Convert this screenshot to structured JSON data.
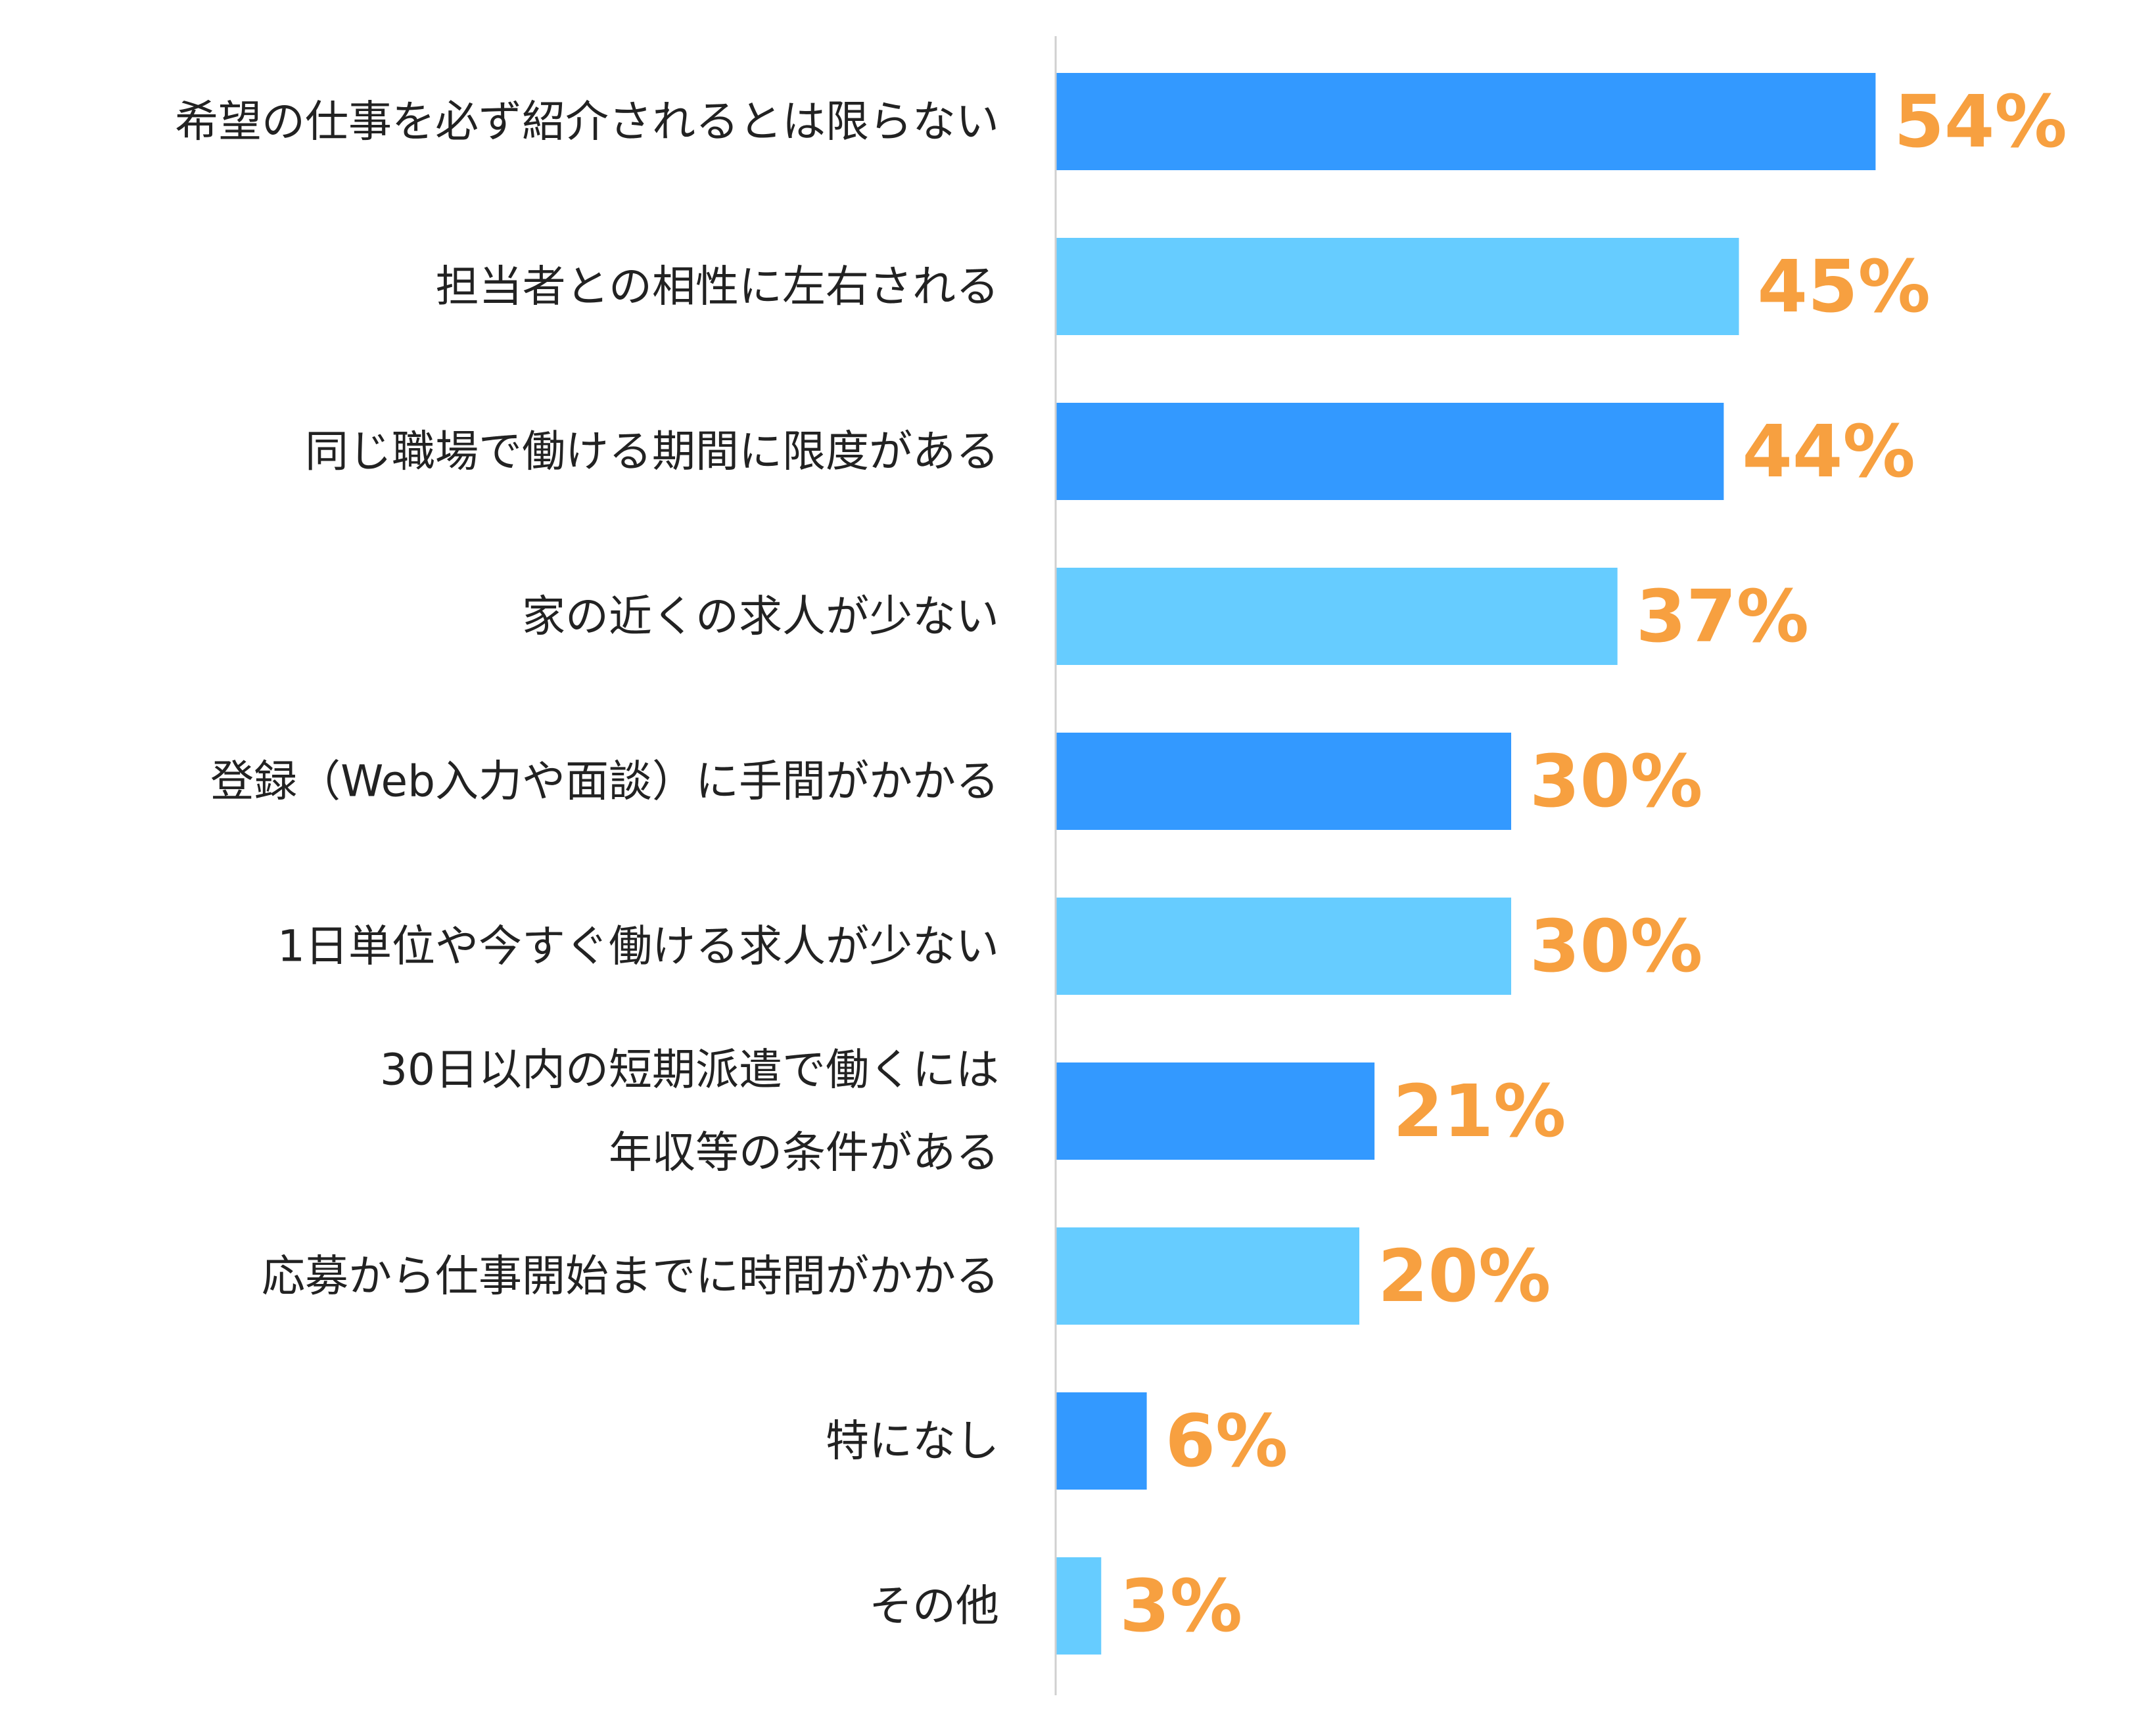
{
  "chart_data": {
    "type": "bar",
    "orientation": "horizontal",
    "categories": [
      [
        "希望の仕事を必ず紹介されるとは限らない"
      ],
      [
        "担当者との相性に左右される"
      ],
      [
        "同じ職場で働ける期間に限度がある"
      ],
      [
        "家の近くの求人が少ない"
      ],
      [
        "登録（Web入力や面談）に手間がかかる"
      ],
      [
        "1日単位や今すぐ働ける求人が少ない"
      ],
      [
        "30日以内の短期派遣で働くには",
        "年収等の条件がある"
      ],
      [
        "応募から仕事開始までに時間がかかる"
      ],
      [
        "特になし"
      ],
      [
        "その他"
      ]
    ],
    "values": [
      54,
      45,
      44,
      37,
      30,
      30,
      21,
      20,
      6,
      3
    ],
    "value_labels": [
      "54%",
      "45%",
      "44%",
      "37%",
      "30%",
      "30%",
      "21%",
      "20%",
      "6%",
      "3%"
    ],
    "unit": "%",
    "xlim": [
      0,
      60
    ],
    "grid": false,
    "legend": "none",
    "colors": {
      "bar_dark": "#3399ff",
      "bar_light": "#66ccff",
      "value_label": "#f7a040",
      "axis_line": "#d0d0d0",
      "category_text": "#222222"
    }
  }
}
